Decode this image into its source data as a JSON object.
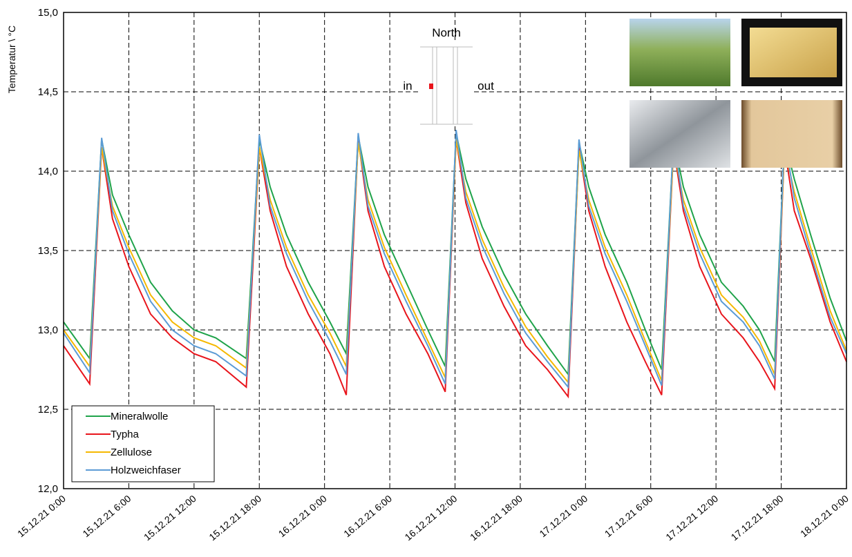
{
  "chart_data": {
    "type": "line",
    "y_label": "Temperatur \\ °C",
    "annotations": {
      "north": "North",
      "in": "in",
      "out": "out"
    },
    "x": [
      "15.12.21 0:00",
      "15.12.21 2:24",
      "15.12.21 3:30",
      "15.12.21 4:30",
      "15.12.21 6:00",
      "15.12.21 8:00",
      "15.12.21 10:00",
      "15.12.21 12:00",
      "15.12.21 14:00",
      "15.12.21 16:48",
      "15.12.21 18:00",
      "15.12.21 19:00",
      "15.12.21 20:30",
      "15.12.21 22:30",
      "16.12.21 0:30",
      "16.12.21 2:00",
      "16.12.21 3:06",
      "16.12.21 4:00",
      "16.12.21 5:30",
      "16.12.21 7:30",
      "16.12.21 9:30",
      "16.12.21 11:06",
      "16.12.21 12:06",
      "16.12.21 13:00",
      "16.12.21 14:30",
      "16.12.21 16:30",
      "16.12.21 18:30",
      "16.12.21 20:30",
      "16.12.21 22:24",
      "16.12.21 23:24",
      "17.12.21 0:18",
      "17.12.21 1:48",
      "17.12.21 3:48",
      "17.12.21 5:30",
      "17.12.21 7:00",
      "17.12.21 8:06",
      "17.12.21 9:00",
      "17.12.21 10:30",
      "17.12.21 12:30",
      "17.12.21 14:30",
      "17.12.21 16:00",
      "17.12.21 17:24",
      "17.12.21 18:18",
      "17.12.21 19:12",
      "17.12.21 20:42",
      "17.12.21 22:30",
      "18.12.21 0:00"
    ],
    "series": [
      {
        "name": "Mineralwolle",
        "color": "#1fa34a",
        "values": [
          13.05,
          12.82,
          14.2,
          13.85,
          13.6,
          13.3,
          13.12,
          13.0,
          12.95,
          12.82,
          14.2,
          13.9,
          13.6,
          13.3,
          13.05,
          12.85,
          14.22,
          13.9,
          13.6,
          13.3,
          13.0,
          12.77,
          14.24,
          13.95,
          13.65,
          13.35,
          13.1,
          12.9,
          12.72,
          14.18,
          13.9,
          13.6,
          13.3,
          13.0,
          12.75,
          14.2,
          13.9,
          13.6,
          13.3,
          13.15,
          13.0,
          12.8,
          14.2,
          13.95,
          13.6,
          13.2,
          12.93
        ]
      },
      {
        "name": "Typha",
        "color": "#e8141b",
        "values": [
          12.9,
          12.66,
          14.15,
          13.7,
          13.4,
          13.1,
          12.95,
          12.85,
          12.8,
          12.64,
          14.15,
          13.75,
          13.4,
          13.1,
          12.85,
          12.59,
          14.2,
          13.75,
          13.4,
          13.1,
          12.85,
          12.61,
          14.2,
          13.8,
          13.45,
          13.15,
          12.9,
          12.75,
          12.58,
          14.15,
          13.75,
          13.4,
          13.05,
          12.8,
          12.59,
          14.15,
          13.75,
          13.4,
          13.1,
          12.95,
          12.8,
          12.63,
          14.15,
          13.75,
          13.45,
          13.05,
          12.8
        ]
      },
      {
        "name": "Zellulose",
        "color": "#f5b800",
        "values": [
          13.0,
          12.77,
          14.15,
          13.78,
          13.52,
          13.22,
          13.05,
          12.95,
          12.9,
          12.76,
          14.15,
          13.82,
          13.52,
          13.22,
          12.98,
          12.77,
          14.18,
          13.82,
          13.52,
          13.22,
          12.93,
          12.7,
          14.2,
          13.87,
          13.57,
          13.27,
          13.02,
          12.83,
          12.67,
          14.13,
          13.82,
          13.52,
          13.22,
          12.93,
          12.68,
          14.15,
          13.82,
          13.52,
          13.22,
          13.08,
          12.93,
          12.72,
          14.15,
          13.87,
          13.52,
          13.12,
          12.87
        ]
      },
      {
        "name": "Holzweichfaser",
        "color": "#5b9bd5",
        "values": [
          12.98,
          12.73,
          14.21,
          13.75,
          13.48,
          13.18,
          13.0,
          12.9,
          12.85,
          12.71,
          14.23,
          13.78,
          13.48,
          13.18,
          12.93,
          12.72,
          14.24,
          13.78,
          13.48,
          13.18,
          12.9,
          12.66,
          14.26,
          13.83,
          13.53,
          13.23,
          12.98,
          12.8,
          12.64,
          14.2,
          13.78,
          13.48,
          13.18,
          12.9,
          12.65,
          14.22,
          13.78,
          13.48,
          13.18,
          13.05,
          12.9,
          12.69,
          14.22,
          13.83,
          13.48,
          13.08,
          12.85
        ]
      }
    ],
    "xlim": [
      "15.12.21 0:00",
      "18.12.21 0:00"
    ],
    "xticks": [
      "15.12.21 0:00",
      "15.12.21 6:00",
      "15.12.21 12:00",
      "15.12.21 18:00",
      "16.12.21 0:00",
      "16.12.21 6:00",
      "16.12.21 12:00",
      "16.12.21 18:00",
      "17.12.21 0:00",
      "17.12.21 6:00",
      "17.12.21 12:00",
      "17.12.21 18:00",
      "18.12.21 0:00"
    ],
    "ylim": [
      12.0,
      15.0
    ],
    "yticks": [
      {
        "value": 12.0,
        "label": "12,0"
      },
      {
        "value": 12.5,
        "label": "12,5"
      },
      {
        "value": 13.0,
        "label": "13,0"
      },
      {
        "value": 13.5,
        "label": "13,5"
      },
      {
        "value": 14.0,
        "label": "14,0"
      },
      {
        "value": 14.5,
        "label": "14,5"
      },
      {
        "value": 15.0,
        "label": "15,0"
      }
    ],
    "grid": true,
    "legend": "lower-left"
  }
}
